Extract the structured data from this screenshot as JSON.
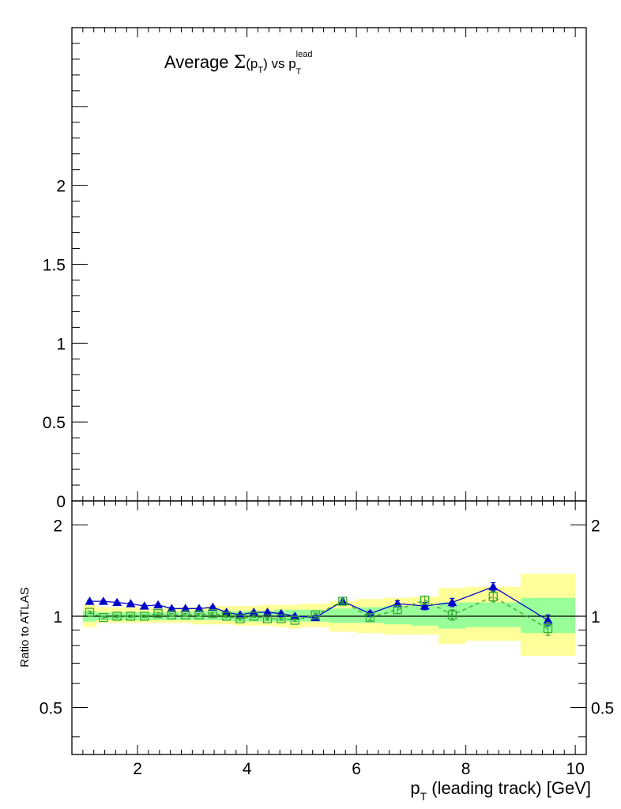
{
  "chart_data": [
    {
      "type": "line",
      "panel": "main",
      "title_parts": {
        "prefix": "Average ",
        "sigma": "Σ",
        "open": "(p",
        "sub_t": "T",
        "close": ")",
        "vs": " vs p",
        "sup_lead": "lead",
        "sub_t2": "T"
      },
      "xlim": [
        0.8,
        10.2
      ],
      "ylim": [
        0,
        3.0
      ],
      "yticks": [
        0,
        0.5,
        1,
        1.5,
        2
      ],
      "ytick_labels": [
        "0",
        "0.5",
        "1",
        "1.5",
        "2"
      ],
      "series": []
    },
    {
      "type": "line",
      "panel": "ratio",
      "ylabel": "Ratio to ATLAS",
      "xlabel_parts": {
        "p": "p",
        "sub": "T",
        "rest": " (leading track) [GeV]"
      },
      "xlim": [
        0.8,
        10.2
      ],
      "ylim": [
        0.35,
        2.4
      ],
      "log_y": true,
      "xticks": [
        2,
        4,
        6,
        8,
        10
      ],
      "xtick_labels": [
        "2",
        "4",
        "6",
        "8",
        "10"
      ],
      "yticks": [
        0.5,
        1,
        2
      ],
      "ytick_labels": [
        "0.5",
        "1",
        "2"
      ],
      "reference_line": 1.0,
      "bands": {
        "edges": [
          1.0,
          1.25,
          1.5,
          1.75,
          2.0,
          2.25,
          2.5,
          2.75,
          3.0,
          3.25,
          3.5,
          3.75,
          4.0,
          4.25,
          4.5,
          4.75,
          5.0,
          5.5,
          6.0,
          6.5,
          7.0,
          7.5,
          8.0,
          9.0,
          10.0
        ],
        "outer": [
          [
            0.92,
            1.09
          ],
          [
            0.95,
            1.07
          ],
          [
            0.95,
            1.07
          ],
          [
            0.95,
            1.07
          ],
          [
            0.95,
            1.07
          ],
          [
            0.95,
            1.07
          ],
          [
            0.95,
            1.07
          ],
          [
            0.95,
            1.07
          ],
          [
            0.94,
            1.07
          ],
          [
            0.94,
            1.08
          ],
          [
            0.94,
            1.08
          ],
          [
            0.93,
            1.08
          ],
          [
            0.93,
            1.08
          ],
          [
            0.93,
            1.09
          ],
          [
            0.92,
            1.09
          ],
          [
            0.91,
            1.09
          ],
          [
            0.92,
            1.1
          ],
          [
            0.89,
            1.12
          ],
          [
            0.88,
            1.14
          ],
          [
            0.87,
            1.15
          ],
          [
            0.87,
            1.16
          ],
          [
            0.81,
            1.24
          ],
          [
            0.83,
            1.25
          ],
          [
            0.74,
            1.38
          ]
        ],
        "inner": [
          [
            0.96,
            1.04
          ],
          [
            0.97,
            1.03
          ],
          [
            0.97,
            1.03
          ],
          [
            0.97,
            1.03
          ],
          [
            0.97,
            1.03
          ],
          [
            0.97,
            1.03
          ],
          [
            0.97,
            1.03
          ],
          [
            0.97,
            1.03
          ],
          [
            0.97,
            1.04
          ],
          [
            0.97,
            1.04
          ],
          [
            0.97,
            1.04
          ],
          [
            0.96,
            1.04
          ],
          [
            0.96,
            1.04
          ],
          [
            0.96,
            1.04
          ],
          [
            0.96,
            1.05
          ],
          [
            0.96,
            1.05
          ],
          [
            0.96,
            1.05
          ],
          [
            0.95,
            1.06
          ],
          [
            0.95,
            1.07
          ],
          [
            0.94,
            1.08
          ],
          [
            0.93,
            1.08
          ],
          [
            0.91,
            1.11
          ],
          [
            0.92,
            1.11
          ],
          [
            0.88,
            1.15
          ]
        ]
      },
      "series": [
        {
          "style": "solid",
          "color": "#0000cc",
          "marker": "triangle",
          "x": [
            1.125,
            1.375,
            1.625,
            1.875,
            2.125,
            2.375,
            2.625,
            2.875,
            3.125,
            3.375,
            3.625,
            3.875,
            4.125,
            4.375,
            4.625,
            4.875,
            5.25,
            5.75,
            6.25,
            6.75,
            7.25,
            7.75,
            8.5,
            9.5
          ],
          "y": [
            1.12,
            1.12,
            1.11,
            1.1,
            1.08,
            1.09,
            1.06,
            1.06,
            1.06,
            1.07,
            1.03,
            1.01,
            1.03,
            1.03,
            1.02,
            1.0,
            0.99,
            1.12,
            1.02,
            1.1,
            1.08,
            1.11,
            1.25,
            0.97
          ],
          "err": [
            0.01,
            0.01,
            0.01,
            0.01,
            0.01,
            0.01,
            0.01,
            0.01,
            0.01,
            0.01,
            0.01,
            0.01,
            0.01,
            0.01,
            0.01,
            0.01,
            0.015,
            0.02,
            0.02,
            0.025,
            0.03,
            0.035,
            0.04,
            0.04
          ]
        },
        {
          "style": "dashed",
          "color": "#33aa33",
          "marker": "open-square",
          "x": [
            1.125,
            1.375,
            1.625,
            1.875,
            2.125,
            2.375,
            2.625,
            2.875,
            3.125,
            3.375,
            3.625,
            3.875,
            4.125,
            4.375,
            4.625,
            4.875,
            5.25,
            5.75,
            6.25,
            6.75,
            7.25,
            7.75,
            8.5,
            9.5
          ],
          "y": [
            1.03,
            0.99,
            1.0,
            1.0,
            1.0,
            1.02,
            1.01,
            1.01,
            1.01,
            1.02,
            1.0,
            0.98,
            1.0,
            0.98,
            0.98,
            0.97,
            1.01,
            1.12,
            0.99,
            1.05,
            1.13,
            1.01,
            1.16,
            0.91
          ],
          "err": [
            0.01,
            0.01,
            0.01,
            0.01,
            0.01,
            0.01,
            0.01,
            0.01,
            0.01,
            0.01,
            0.01,
            0.01,
            0.01,
            0.01,
            0.01,
            0.01,
            0.015,
            0.02,
            0.02,
            0.03,
            0.035,
            0.04,
            0.045,
            0.045
          ]
        }
      ]
    }
  ],
  "colors": {
    "band_outer": "#ffff99",
    "band_inner": "#99ff99",
    "frame": "#000000"
  }
}
